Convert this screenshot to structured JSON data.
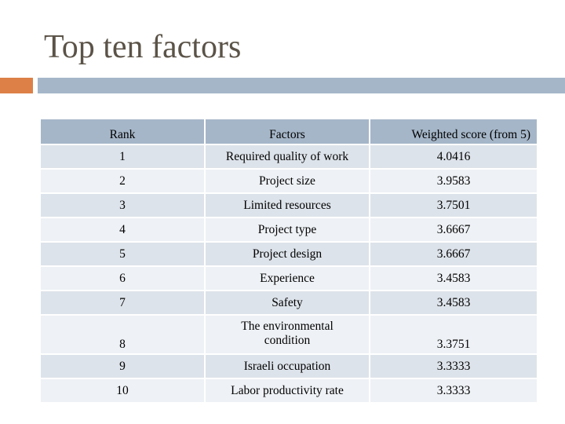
{
  "slide": {
    "title": "Top ten factors"
  },
  "colors": {
    "title_text": "#5b5348",
    "accent_orange": "#dd8047",
    "accent_blue": "#a5b6c8",
    "row_dark": "#dde3ea",
    "row_light": "#eef1f5"
  },
  "table": {
    "headers": {
      "rank": "Rank",
      "factor": "Factors",
      "score": "Weighted score  (from 5)"
    },
    "rows": [
      {
        "rank": "1",
        "factor": "Required quality of work",
        "score": "4.0416"
      },
      {
        "rank": "2",
        "factor": "Project size",
        "score": "3.9583"
      },
      {
        "rank": "3",
        "factor": "Limited resources",
        "score": "3.7501"
      },
      {
        "rank": "4",
        "factor": "Project type",
        "score": "3.6667"
      },
      {
        "rank": "5",
        "factor": "Project design",
        "score": "3.6667"
      },
      {
        "rank": "6",
        "factor": "Experience",
        "score": "3.4583"
      },
      {
        "rank": "7",
        "factor": "Safety",
        "score": "3.4583"
      },
      {
        "rank": "8",
        "factor_line1": "The environmental",
        "factor_line2": "condition",
        "score": "3.3751"
      },
      {
        "rank": "9",
        "factor": "Israeli occupation",
        "score": "3.3333"
      },
      {
        "rank": "10",
        "factor": "Labor productivity rate",
        "score": "3.3333"
      }
    ]
  }
}
